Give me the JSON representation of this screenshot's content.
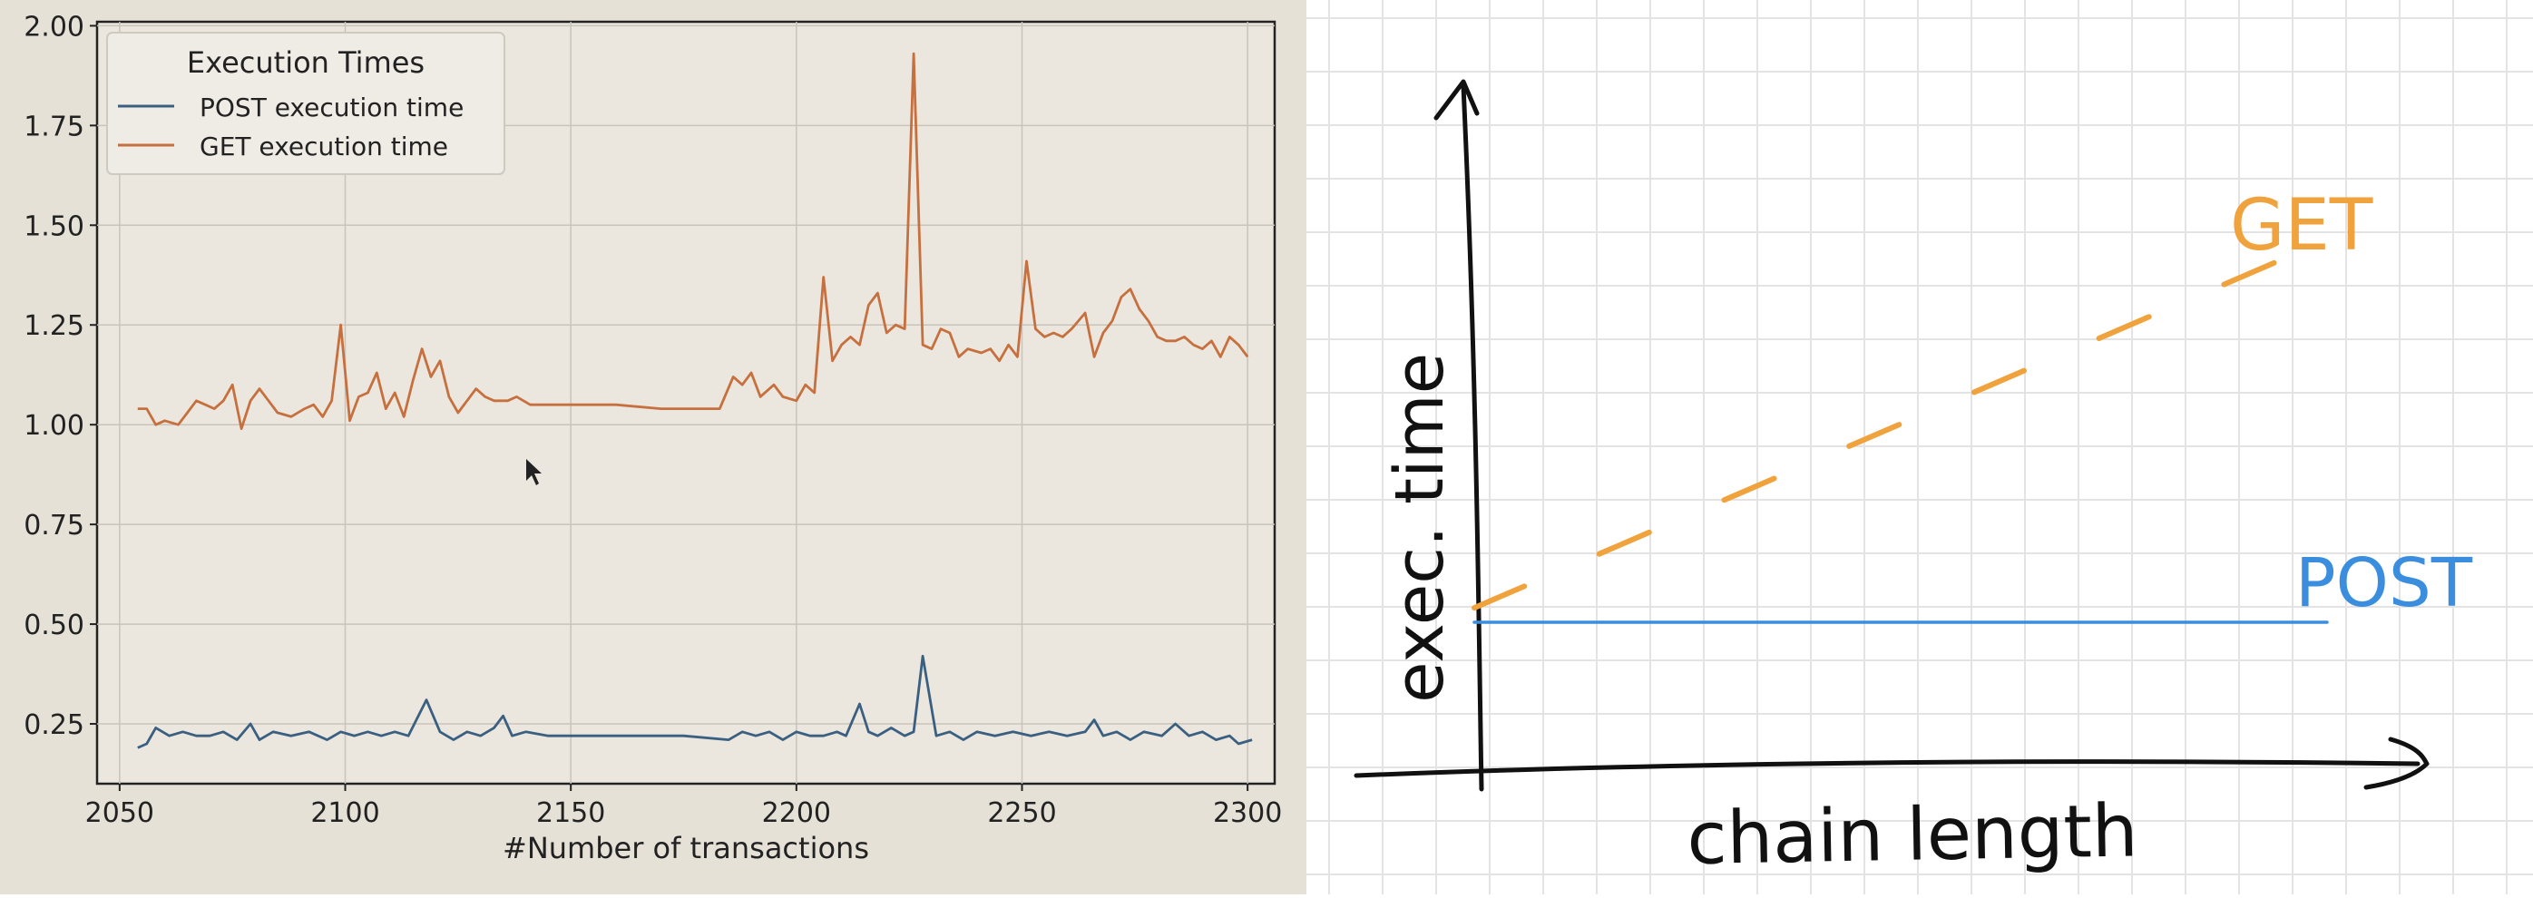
{
  "chart_data": [
    {
      "type": "line",
      "title": "",
      "xlabel": "#Number of transactions",
      "ylabel": "",
      "xlim": [
        2045,
        2306
      ],
      "ylim": [
        0.1,
        2.01
      ],
      "xticks": [
        "2050",
        "2100",
        "2150",
        "2200",
        "2250",
        "2300"
      ],
      "yticks": [
        "0.25",
        "0.50",
        "0.75",
        "1.00",
        "1.25",
        "1.50",
        "1.75",
        "2.00"
      ],
      "grid": true,
      "legend": {
        "title": "Execution Times",
        "placement": "top-left",
        "entries": [
          "POST execution time",
          "GET execution time"
        ]
      },
      "colors": {
        "POST execution time": "#3b5f80",
        "GET execution time": "#c7703f"
      },
      "series": [
        {
          "name": "POST execution time",
          "points": [
            [
              2054,
              0.19
            ],
            [
              2056,
              0.2
            ],
            [
              2058,
              0.24
            ],
            [
              2061,
              0.22
            ],
            [
              2064,
              0.23
            ],
            [
              2067,
              0.22
            ],
            [
              2070,
              0.22
            ],
            [
              2073,
              0.23
            ],
            [
              2076,
              0.21
            ],
            [
              2079,
              0.25
            ],
            [
              2081,
              0.21
            ],
            [
              2084,
              0.23
            ],
            [
              2088,
              0.22
            ],
            [
              2092,
              0.23
            ],
            [
              2096,
              0.21
            ],
            [
              2099,
              0.23
            ],
            [
              2102,
              0.22
            ],
            [
              2105,
              0.23
            ],
            [
              2108,
              0.22
            ],
            [
              2111,
              0.23
            ],
            [
              2114,
              0.22
            ],
            [
              2118,
              0.31
            ],
            [
              2121,
              0.23
            ],
            [
              2124,
              0.21
            ],
            [
              2127,
              0.23
            ],
            [
              2130,
              0.22
            ],
            [
              2133,
              0.24
            ],
            [
              2135,
              0.27
            ],
            [
              2137,
              0.22
            ],
            [
              2140,
              0.23
            ],
            [
              2145,
              0.22
            ],
            [
              2160,
              0.22
            ],
            [
              2175,
              0.22
            ],
            [
              2185,
              0.21
            ],
            [
              2188,
              0.23
            ],
            [
              2191,
              0.22
            ],
            [
              2194,
              0.23
            ],
            [
              2197,
              0.21
            ],
            [
              2200,
              0.23
            ],
            [
              2203,
              0.22
            ],
            [
              2206,
              0.22
            ],
            [
              2209,
              0.23
            ],
            [
              2211,
              0.22
            ],
            [
              2214,
              0.3
            ],
            [
              2216,
              0.23
            ],
            [
              2218,
              0.22
            ],
            [
              2221,
              0.24
            ],
            [
              2224,
              0.22
            ],
            [
              2226,
              0.23
            ],
            [
              2228,
              0.42
            ],
            [
              2231,
              0.22
            ],
            [
              2234,
              0.23
            ],
            [
              2237,
              0.21
            ],
            [
              2240,
              0.23
            ],
            [
              2244,
              0.22
            ],
            [
              2248,
              0.23
            ],
            [
              2252,
              0.22
            ],
            [
              2256,
              0.23
            ],
            [
              2260,
              0.22
            ],
            [
              2264,
              0.23
            ],
            [
              2266,
              0.26
            ],
            [
              2268,
              0.22
            ],
            [
              2271,
              0.23
            ],
            [
              2274,
              0.21
            ],
            [
              2277,
              0.23
            ],
            [
              2281,
              0.22
            ],
            [
              2284,
              0.25
            ],
            [
              2287,
              0.22
            ],
            [
              2290,
              0.23
            ],
            [
              2293,
              0.21
            ],
            [
              2296,
              0.22
            ],
            [
              2298,
              0.2
            ],
            [
              2301,
              0.21
            ]
          ]
        },
        {
          "name": "GET execution time",
          "points": [
            [
              2054,
              1.04
            ],
            [
              2056,
              1.04
            ],
            [
              2058,
              1.0
            ],
            [
              2060,
              1.01
            ],
            [
              2063,
              1.0
            ],
            [
              2065,
              1.03
            ],
            [
              2067,
              1.06
            ],
            [
              2069,
              1.05
            ],
            [
              2071,
              1.04
            ],
            [
              2073,
              1.06
            ],
            [
              2075,
              1.1
            ],
            [
              2077,
              0.99
            ],
            [
              2079,
              1.06
            ],
            [
              2081,
              1.09
            ],
            [
              2083,
              1.06
            ],
            [
              2085,
              1.03
            ],
            [
              2088,
              1.02
            ],
            [
              2091,
              1.04
            ],
            [
              2093,
              1.05
            ],
            [
              2095,
              1.02
            ],
            [
              2097,
              1.06
            ],
            [
              2099,
              1.25
            ],
            [
              2101,
              1.01
            ],
            [
              2103,
              1.07
            ],
            [
              2105,
              1.08
            ],
            [
              2107,
              1.13
            ],
            [
              2109,
              1.04
            ],
            [
              2111,
              1.08
            ],
            [
              2113,
              1.02
            ],
            [
              2115,
              1.11
            ],
            [
              2117,
              1.19
            ],
            [
              2119,
              1.12
            ],
            [
              2121,
              1.16
            ],
            [
              2123,
              1.07
            ],
            [
              2125,
              1.03
            ],
            [
              2127,
              1.06
            ],
            [
              2129,
              1.09
            ],
            [
              2131,
              1.07
            ],
            [
              2133,
              1.06
            ],
            [
              2136,
              1.06
            ],
            [
              2138,
              1.07
            ],
            [
              2141,
              1.05
            ],
            [
              2150,
              1.05
            ],
            [
              2160,
              1.05
            ],
            [
              2170,
              1.04
            ],
            [
              2183,
              1.04
            ],
            [
              2186,
              1.12
            ],
            [
              2188,
              1.1
            ],
            [
              2190,
              1.13
            ],
            [
              2192,
              1.07
            ],
            [
              2195,
              1.1
            ],
            [
              2197,
              1.07
            ],
            [
              2200,
              1.06
            ],
            [
              2202,
              1.1
            ],
            [
              2204,
              1.08
            ],
            [
              2206,
              1.37
            ],
            [
              2208,
              1.16
            ],
            [
              2210,
              1.2
            ],
            [
              2212,
              1.22
            ],
            [
              2214,
              1.2
            ],
            [
              2216,
              1.3
            ],
            [
              2218,
              1.33
            ],
            [
              2220,
              1.23
            ],
            [
              2222,
              1.25
            ],
            [
              2224,
              1.24
            ],
            [
              2226,
              1.93
            ],
            [
              2228,
              1.2
            ],
            [
              2230,
              1.19
            ],
            [
              2232,
              1.24
            ],
            [
              2234,
              1.23
            ],
            [
              2236,
              1.17
            ],
            [
              2238,
              1.19
            ],
            [
              2241,
              1.18
            ],
            [
              2243,
              1.19
            ],
            [
              2245,
              1.16
            ],
            [
              2247,
              1.2
            ],
            [
              2249,
              1.17
            ],
            [
              2251,
              1.41
            ],
            [
              2253,
              1.24
            ],
            [
              2255,
              1.22
            ],
            [
              2257,
              1.23
            ],
            [
              2259,
              1.22
            ],
            [
              2261,
              1.24
            ],
            [
              2264,
              1.28
            ],
            [
              2266,
              1.17
            ],
            [
              2268,
              1.23
            ],
            [
              2270,
              1.26
            ],
            [
              2272,
              1.32
            ],
            [
              2274,
              1.34
            ],
            [
              2276,
              1.29
            ],
            [
              2278,
              1.26
            ],
            [
              2280,
              1.22
            ],
            [
              2282,
              1.21
            ],
            [
              2284,
              1.21
            ],
            [
              2286,
              1.22
            ],
            [
              2288,
              1.2
            ],
            [
              2290,
              1.19
            ],
            [
              2292,
              1.21
            ],
            [
              2294,
              1.17
            ],
            [
              2296,
              1.22
            ],
            [
              2298,
              1.2
            ],
            [
              2300,
              1.17
            ]
          ]
        }
      ]
    },
    {
      "type": "line",
      "title": "",
      "xlabel": "chain length",
      "ylabel": "exec. time",
      "ylim": [
        0,
        1
      ],
      "grid": true,
      "legend": {
        "placement": "inline-right"
      },
      "colors": {
        "POST": "#3b8ede",
        "GET": "#f0a23c"
      },
      "series": [
        {
          "name": "POST",
          "style": "solid",
          "x": [
            0,
            1
          ],
          "y": [
            0.2,
            0.2
          ]
        },
        {
          "name": "GET",
          "style": "dashed",
          "x": [
            0,
            1
          ],
          "y": [
            0.22,
            0.73
          ]
        }
      ]
    }
  ]
}
